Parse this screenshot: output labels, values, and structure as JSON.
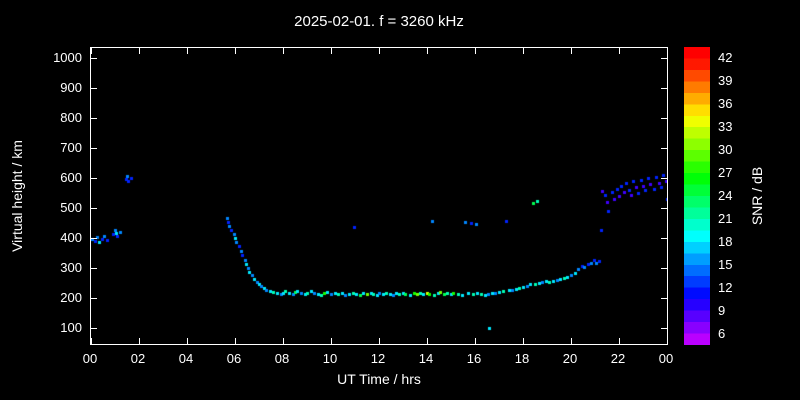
{
  "title": "2025-02-01. f = 3260 kHz",
  "colors": {
    "background": "#000000",
    "frame": "#ffffff",
    "text": "#ffffff"
  },
  "chart_data": {
    "type": "scatter",
    "title": "2025-02-01. f = 3260 kHz",
    "xlabel": "UT Time / hrs",
    "ylabel": "Virtual height / km",
    "xlim": [
      0,
      24
    ],
    "ylim": [
      50,
      1035
    ],
    "grid": false,
    "x_ticks": {
      "values": [
        0,
        2,
        4,
        6,
        8,
        10,
        12,
        14,
        16,
        18,
        20,
        22,
        24
      ],
      "labels": [
        "00",
        "02",
        "04",
        "06",
        "08",
        "10",
        "12",
        "14",
        "16",
        "18",
        "20",
        "22",
        "00"
      ]
    },
    "y_ticks": {
      "values": [
        100,
        200,
        300,
        400,
        500,
        600,
        700,
        800,
        900,
        1000
      ],
      "labels": [
        "100",
        "200",
        "300",
        "400",
        "500",
        "600",
        "700",
        "800",
        "900",
        "1000"
      ]
    },
    "colorbar": {
      "label": "SNR / dB",
      "min": 4.5,
      "max": 43.5,
      "ticks": [
        6,
        9,
        12,
        15,
        18,
        21,
        24,
        27,
        30,
        33,
        36,
        39,
        42
      ]
    },
    "points": [
      [
        0.05,
        400,
        15
      ],
      [
        0.15,
        392,
        12
      ],
      [
        0.25,
        405,
        15
      ],
      [
        0.35,
        390,
        18
      ],
      [
        0.45,
        400,
        12
      ],
      [
        0.55,
        410,
        15
      ],
      [
        0.65,
        396,
        12
      ],
      [
        0.9,
        415,
        12
      ],
      [
        1.0,
        428,
        15
      ],
      [
        1.05,
        418,
        18
      ],
      [
        1.1,
        408,
        12
      ],
      [
        1.2,
        422,
        15
      ],
      [
        1.45,
        598,
        12
      ],
      [
        1.5,
        610,
        15
      ],
      [
        1.55,
        592,
        12
      ],
      [
        1.65,
        604,
        12
      ],
      [
        5.65,
        470,
        15
      ],
      [
        5.7,
        456,
        12
      ],
      [
        5.75,
        442,
        15
      ],
      [
        5.85,
        430,
        12
      ],
      [
        5.95,
        416,
        15
      ],
      [
        6.0,
        402,
        18
      ],
      [
        6.05,
        390,
        15
      ],
      [
        6.15,
        376,
        12
      ],
      [
        6.25,
        360,
        15
      ],
      [
        6.3,
        346,
        12
      ],
      [
        6.4,
        330,
        15
      ],
      [
        6.45,
        316,
        18
      ],
      [
        6.55,
        302,
        15
      ],
      [
        6.6,
        290,
        18
      ],
      [
        6.7,
        278,
        15
      ],
      [
        6.8,
        266,
        18
      ],
      [
        6.9,
        256,
        15
      ],
      [
        7.0,
        248,
        18
      ],
      [
        7.1,
        242,
        15
      ],
      [
        7.2,
        236,
        18
      ],
      [
        7.3,
        230,
        15
      ],
      [
        7.45,
        226,
        18
      ],
      [
        7.6,
        222,
        21
      ],
      [
        7.75,
        219,
        18
      ],
      [
        7.9,
        216,
        15
      ],
      [
        8.0,
        221,
        18
      ],
      [
        8.1,
        226,
        21
      ],
      [
        8.25,
        219,
        18
      ],
      [
        8.4,
        216,
        15
      ],
      [
        8.5,
        223,
        24
      ],
      [
        8.6,
        228,
        18
      ],
      [
        8.75,
        221,
        15
      ],
      [
        8.9,
        216,
        18
      ],
      [
        9.0,
        219,
        21
      ],
      [
        9.15,
        225,
        18
      ],
      [
        9.3,
        221,
        15
      ],
      [
        9.45,
        216,
        18
      ],
      [
        9.6,
        213,
        21
      ],
      [
        9.7,
        219,
        27
      ],
      [
        9.85,
        223,
        18
      ],
      [
        10.0,
        216,
        15
      ],
      [
        10.15,
        221,
        18
      ],
      [
        10.3,
        216,
        21
      ],
      [
        10.45,
        219,
        18
      ],
      [
        10.6,
        213,
        15
      ],
      [
        10.75,
        216,
        18
      ],
      [
        10.9,
        221,
        21
      ],
      [
        10.95,
        440,
        12
      ],
      [
        11.05,
        216,
        18
      ],
      [
        11.2,
        213,
        24
      ],
      [
        11.35,
        219,
        18
      ],
      [
        11.5,
        216,
        30
      ],
      [
        11.65,
        221,
        18
      ],
      [
        11.75,
        216,
        21
      ],
      [
        11.9,
        213,
        18
      ],
      [
        12.0,
        219,
        15
      ],
      [
        12.15,
        216,
        18
      ],
      [
        12.3,
        221,
        21
      ],
      [
        12.45,
        216,
        18
      ],
      [
        12.6,
        213,
        15
      ],
      [
        12.7,
        219,
        18
      ],
      [
        12.85,
        216,
        21
      ],
      [
        13.0,
        221,
        18
      ],
      [
        13.1,
        216,
        24
      ],
      [
        13.3,
        213,
        18
      ],
      [
        13.45,
        219,
        27
      ],
      [
        13.6,
        216,
        30
      ],
      [
        13.7,
        221,
        21
      ],
      [
        13.85,
        216,
        18
      ],
      [
        14.0,
        219,
        33
      ],
      [
        14.1,
        216,
        27
      ],
      [
        14.2,
        460,
        15
      ],
      [
        14.3,
        213,
        21
      ],
      [
        14.45,
        219,
        18
      ],
      [
        14.55,
        223,
        30
      ],
      [
        14.7,
        216,
        24
      ],
      [
        14.85,
        219,
        21
      ],
      [
        15.0,
        216,
        18
      ],
      [
        15.1,
        221,
        27
      ],
      [
        15.3,
        216,
        21
      ],
      [
        15.45,
        213,
        18
      ],
      [
        15.6,
        456,
        15
      ],
      [
        15.7,
        219,
        18
      ],
      [
        15.85,
        454,
        12
      ],
      [
        15.9,
        216,
        21
      ],
      [
        16.05,
        450,
        15
      ],
      [
        16.1,
        219,
        18
      ],
      [
        16.25,
        216,
        21
      ],
      [
        16.4,
        213,
        18
      ],
      [
        16.55,
        216,
        15
      ],
      [
        16.6,
        102,
        18
      ],
      [
        16.7,
        219,
        18
      ],
      [
        16.85,
        221,
        15
      ],
      [
        17.0,
        223,
        18
      ],
      [
        17.15,
        226,
        21
      ],
      [
        17.3,
        460,
        12
      ],
      [
        17.4,
        229,
        18
      ],
      [
        17.55,
        231,
        15
      ],
      [
        17.7,
        233,
        18
      ],
      [
        17.85,
        236,
        21
      ],
      [
        18.0,
        239,
        18
      ],
      [
        18.15,
        243,
        15
      ],
      [
        18.3,
        248,
        18
      ],
      [
        18.4,
        520,
        24
      ],
      [
        18.5,
        251,
        21
      ],
      [
        18.6,
        526,
        21
      ],
      [
        18.65,
        253,
        18
      ],
      [
        18.8,
        256,
        15
      ],
      [
        18.95,
        259,
        18
      ],
      [
        19.1,
        256,
        21
      ],
      [
        19.25,
        261,
        18
      ],
      [
        19.4,
        263,
        15
      ],
      [
        19.55,
        266,
        18
      ],
      [
        19.7,
        269,
        21
      ],
      [
        19.85,
        273,
        18
      ],
      [
        20.0,
        279,
        15
      ],
      [
        20.15,
        286,
        18
      ],
      [
        20.3,
        300,
        15
      ],
      [
        20.45,
        310,
        12
      ],
      [
        20.55,
        305,
        15
      ],
      [
        20.7,
        316,
        12
      ],
      [
        20.85,
        321,
        15
      ],
      [
        20.95,
        331,
        12
      ],
      [
        21.05,
        318,
        15
      ],
      [
        21.15,
        326,
        12
      ],
      [
        21.25,
        430,
        12
      ],
      [
        21.3,
        560,
        9
      ],
      [
        21.4,
        546,
        12
      ],
      [
        21.5,
        521,
        9
      ],
      [
        21.55,
        492,
        12
      ],
      [
        21.7,
        556,
        12
      ],
      [
        21.8,
        531,
        9
      ],
      [
        21.9,
        566,
        12
      ],
      [
        22.0,
        541,
        9
      ],
      [
        22.1,
        576,
        12
      ],
      [
        22.2,
        556,
        9
      ],
      [
        22.3,
        586,
        12
      ],
      [
        22.4,
        561,
        12
      ],
      [
        22.5,
        546,
        9
      ],
      [
        22.6,
        591,
        12
      ],
      [
        22.7,
        571,
        9
      ],
      [
        22.8,
        551,
        12
      ],
      [
        22.9,
        596,
        12
      ],
      [
        23.0,
        576,
        9
      ],
      [
        23.1,
        561,
        12
      ],
      [
        23.2,
        601,
        12
      ],
      [
        23.3,
        581,
        9
      ],
      [
        23.45,
        566,
        12
      ],
      [
        23.55,
        606,
        12
      ],
      [
        23.65,
        586,
        9
      ],
      [
        23.75,
        571,
        12
      ],
      [
        23.85,
        611,
        12
      ],
      [
        23.95,
        591,
        9
      ],
      [
        24.0,
        531,
        12
      ]
    ]
  }
}
